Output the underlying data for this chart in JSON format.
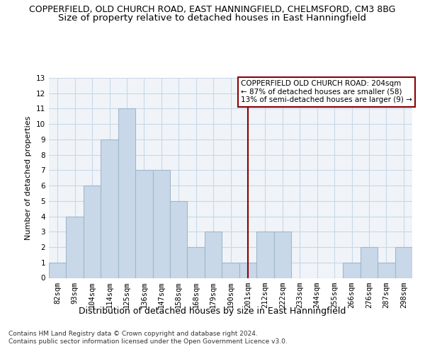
{
  "title1": "COPPERFIELD, OLD CHURCH ROAD, EAST HANNINGFIELD, CHELMSFORD, CM3 8BG",
  "title2": "Size of property relative to detached houses in East Hanningfield",
  "xlabel": "Distribution of detached houses by size in East Hanningfield",
  "ylabel": "Number of detached properties",
  "footnote": "Contains HM Land Registry data © Crown copyright and database right 2024.\nContains public sector information licensed under the Open Government Licence v3.0.",
  "categories": [
    "82sqm",
    "93sqm",
    "104sqm",
    "114sqm",
    "125sqm",
    "136sqm",
    "147sqm",
    "158sqm",
    "168sqm",
    "179sqm",
    "190sqm",
    "201sqm",
    "212sqm",
    "222sqm",
    "233sqm",
    "244sqm",
    "255sqm",
    "266sqm",
    "276sqm",
    "287sqm",
    "298sqm"
  ],
  "values": [
    1,
    4,
    6,
    9,
    11,
    7,
    7,
    5,
    2,
    3,
    1,
    1,
    3,
    3,
    0,
    0,
    0,
    1,
    2,
    1,
    2
  ],
  "bar_color": "#c8d8e8",
  "bar_edge_color": "#a0b8cc",
  "bar_linewidth": 0.8,
  "vline_x_index": 11,
  "vline_color": "#8b0000",
  "vline_linewidth": 1.5,
  "annotation_text": "COPPERFIELD OLD CHURCH ROAD: 204sqm\n← 87% of detached houses are smaller (58)\n13% of semi-detached houses are larger (9) →",
  "annotation_box_color": "#8b0000",
  "ylim": [
    0,
    13
  ],
  "yticks": [
    0,
    1,
    2,
    3,
    4,
    5,
    6,
    7,
    8,
    9,
    10,
    11,
    12,
    13
  ],
  "grid_color": "#c8d8e8",
  "bg_color": "#f0f4f8",
  "title1_fontsize": 9.0,
  "title2_fontsize": 9.5,
  "xlabel_fontsize": 9.0,
  "ylabel_fontsize": 8.0,
  "tick_fontsize": 7.5,
  "footnote_fontsize": 6.5,
  "ann_fontsize": 7.5
}
